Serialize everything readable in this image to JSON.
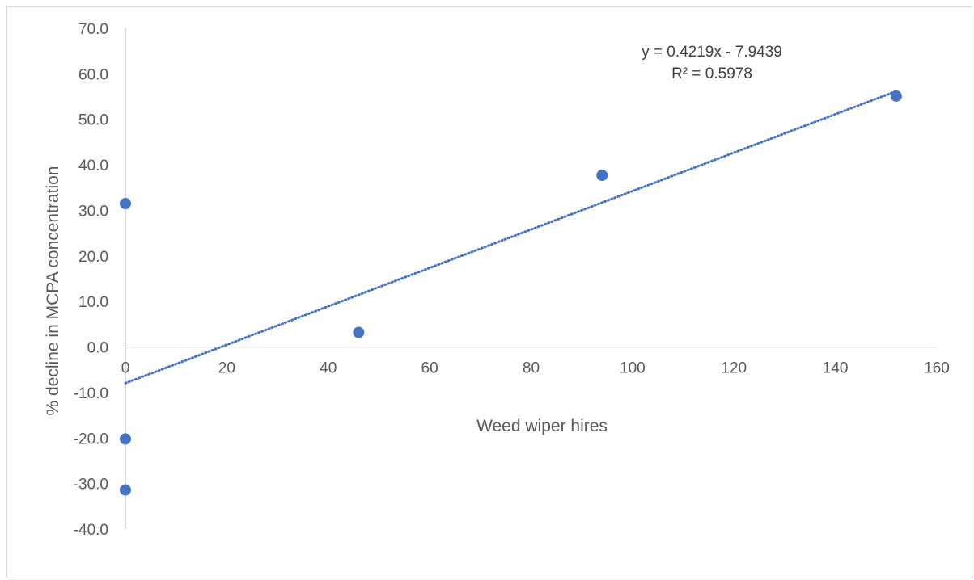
{
  "chart_data": {
    "type": "scatter",
    "title": "",
    "xlabel": "Weed wiper hires",
    "ylabel": "% decline in MCPA concentration",
    "xlim": [
      0,
      160
    ],
    "ylim": [
      -40,
      70
    ],
    "x_ticks": [
      "0",
      "20",
      "40",
      "60",
      "80",
      "100",
      "120",
      "140",
      "160"
    ],
    "y_ticks": [
      "70.0",
      "60.0",
      "50.0",
      "40.0",
      "30.0",
      "20.0",
      "10.0",
      "0.0",
      "-10.0",
      "-20.0",
      "-30.0",
      "-40.0"
    ],
    "grid": false,
    "legend": "none",
    "series": [
      {
        "x": [
          0,
          46,
          94,
          152,
          0,
          0
        ],
        "y": [
          31.5,
          3.2,
          37.7,
          55.1,
          -20.2,
          -31.4
        ],
        "color": "#4472c4"
      }
    ],
    "trendline": {
      "type": "linear",
      "slope": 0.4219,
      "intercept": -7.9439,
      "x_range": [
        0,
        152
      ],
      "style": "dotted",
      "color": "#4472c4",
      "equation_label": "y = 0.4219x - 7.9439",
      "r2_label": "R² = 0.5978"
    }
  }
}
